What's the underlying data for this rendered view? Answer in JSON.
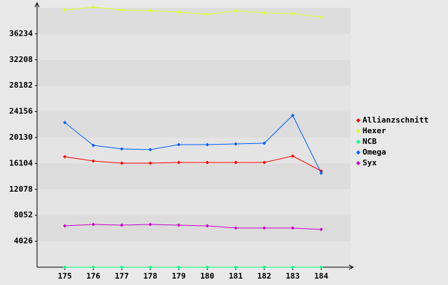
{
  "chart_data": {
    "type": "line",
    "categories": [
      "175",
      "176",
      "177",
      "178",
      "179",
      "180",
      "181",
      "182",
      "183",
      "184"
    ],
    "series": [
      {
        "name": "Allianzschnitt",
        "color": "#ff0000",
        "values": [
          17144,
          16480,
          16148,
          16148,
          16259,
          16259,
          16259,
          16259,
          17254,
          14932
        ]
      },
      {
        "name": "Hexer",
        "color": "#ddff22",
        "values": [
          39928,
          40370,
          39928,
          39817,
          39596,
          39265,
          39817,
          39486,
          39375,
          38822
        ]
      },
      {
        "name": "NCB",
        "color": "#00ff88",
        "values": [
          0,
          0,
          0,
          0,
          0,
          0,
          0,
          0,
          0,
          0
        ]
      },
      {
        "name": "Omega",
        "color": "#0060ff",
        "values": [
          22453,
          18913,
          18360,
          18250,
          19024,
          19024,
          19135,
          19245,
          23559,
          14600
        ]
      },
      {
        "name": "Syx",
        "color": "#cc00cc",
        "values": [
          6415,
          6636,
          6526,
          6636,
          6526,
          6415,
          6083,
          6083,
          6083,
          5862
        ]
      }
    ],
    "ylim": [
      0,
      40260
    ],
    "yticks": [
      4026,
      8052,
      12078,
      16104,
      20130,
      24156,
      28182,
      32208,
      36234
    ],
    "grid": true,
    "legend": "right"
  }
}
